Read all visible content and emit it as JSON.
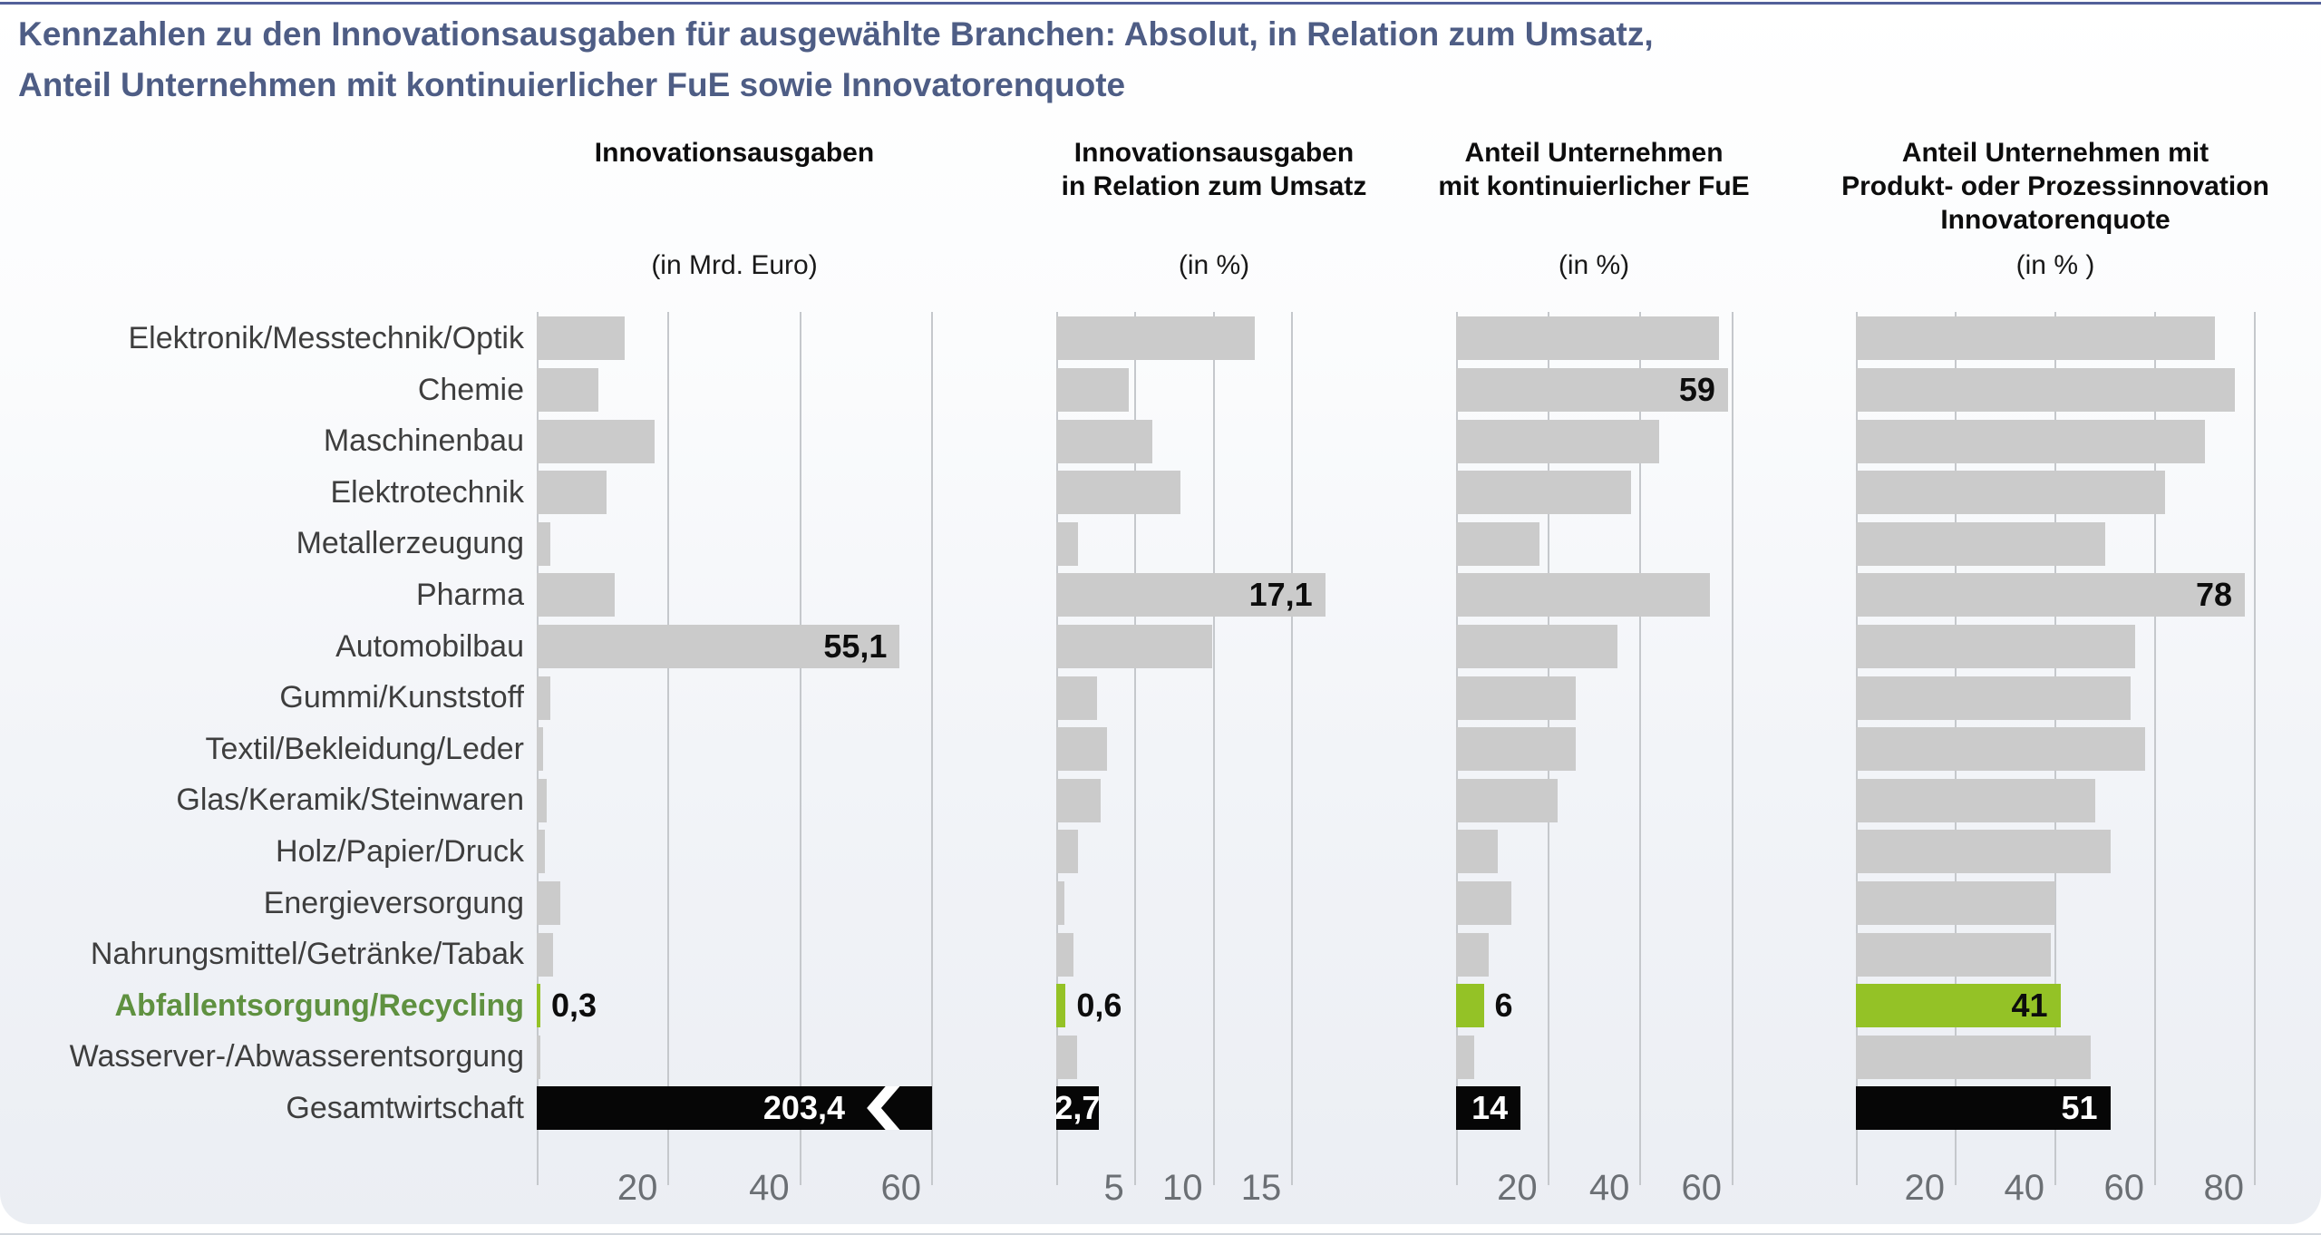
{
  "title": {
    "line1": "Kennzahlen zu den Innovationsausgaben für ausgewählte Branchen: Absolut, in Relation zum Umsatz,",
    "line2": "Anteil Unternehmen mit kontinuierlicher FuE sowie Innovatorenquote"
  },
  "colors": {
    "title_blue": "#4e5d85",
    "top_border": "#52609a",
    "bar_gray": "#cbcbcb",
    "bar_black": "#060606",
    "accent_green": "#94c226",
    "green_label_text": "#5f9140",
    "gridline": "#c5c8cc",
    "tick_text": "#6b6f74"
  },
  "chart_data": {
    "type": "bar",
    "orientation": "horizontal",
    "grid": true,
    "categories": [
      "Elektronik/Messtechnik/Optik",
      "Chemie",
      "Maschinenbau",
      "Elektrotechnik",
      "Metallerzeugung",
      "Pharma",
      "Automobilbau",
      "Gummi/Kunststoff",
      "Textil/Bekleidung/Leder",
      "Glas/Keramik/Steinwaren",
      "Holz/Papier/Druck",
      "Energieversorgung",
      "Nahrungsmittel/Getränke/Tabak",
      "Abfallentsorgung/Recycling",
      "Wasserver-/Abwasserentsorgung",
      "Gesamtwirtschaft"
    ],
    "highlight_index": 13,
    "total_index": 15,
    "panels": [
      {
        "header_lines": [
          "Innovationsausgaben"
        ],
        "unit_label": "(in Mrd. Euro)",
        "ticks": [
          20,
          40,
          60
        ],
        "xmax": 60,
        "values": [
          13.3,
          9.3,
          17.9,
          10.6,
          2.0,
          11.8,
          55.1,
          2.1,
          1.0,
          1.5,
          1.2,
          3.6,
          2.5,
          0.3,
          0.1,
          203.4
        ],
        "value_labels": [
          {
            "index": 6,
            "text": "55,1",
            "placement": "inside"
          },
          {
            "index": 13,
            "text": "0,3",
            "placement": "outside"
          },
          {
            "index": 15,
            "text": "203,4",
            "placement": "inside",
            "clipped": true
          }
        ]
      },
      {
        "header_lines": [
          "Innovationsausgaben",
          "in Relation zum Umsatz"
        ],
        "unit_label": "(in %)",
        "ticks": [
          5,
          10,
          15
        ],
        "xmax": 20,
        "values": [
          12.6,
          4.6,
          6.1,
          7.9,
          1.4,
          17.1,
          9.9,
          2.6,
          3.2,
          2.8,
          1.4,
          0.5,
          1.1,
          0.6,
          1.3,
          2.7
        ],
        "value_labels": [
          {
            "index": 5,
            "text": "17,1",
            "placement": "inside"
          },
          {
            "index": 13,
            "text": "0,6",
            "placement": "outside"
          },
          {
            "index": 15,
            "text": "2,7",
            "placement": "inside-center"
          }
        ]
      },
      {
        "header_lines": [
          "Anteil Unternehmen",
          "mit kontinuierlicher FuE"
        ],
        "unit_label": "(in %)",
        "ticks": [
          20,
          40,
          60
        ],
        "xmax": 60,
        "values": [
          57,
          59,
          44,
          38,
          18,
          55,
          35,
          26,
          26,
          22,
          9,
          12,
          7,
          6,
          4,
          14
        ],
        "value_labels": [
          {
            "index": 1,
            "text": "59",
            "placement": "inside"
          },
          {
            "index": 13,
            "text": "6",
            "placement": "outside"
          },
          {
            "index": 15,
            "text": "14",
            "placement": "inside"
          }
        ]
      },
      {
        "header_lines": [
          "Anteil Unternehmen mit",
          "Produkt- oder Prozessinnovation",
          "Innovatorenquote"
        ],
        "unit_label": "(in % )",
        "ticks": [
          20,
          40,
          60,
          80
        ],
        "xmax": 80,
        "values": [
          72,
          76,
          70,
          62,
          50,
          78,
          56,
          55,
          58,
          48,
          51,
          40,
          39,
          41,
          47,
          51
        ],
        "value_labels": [
          {
            "index": 5,
            "text": "78",
            "placement": "inside"
          },
          {
            "index": 13,
            "text": "41",
            "placement": "inside"
          },
          {
            "index": 15,
            "text": "51",
            "placement": "inside"
          }
        ]
      }
    ]
  }
}
